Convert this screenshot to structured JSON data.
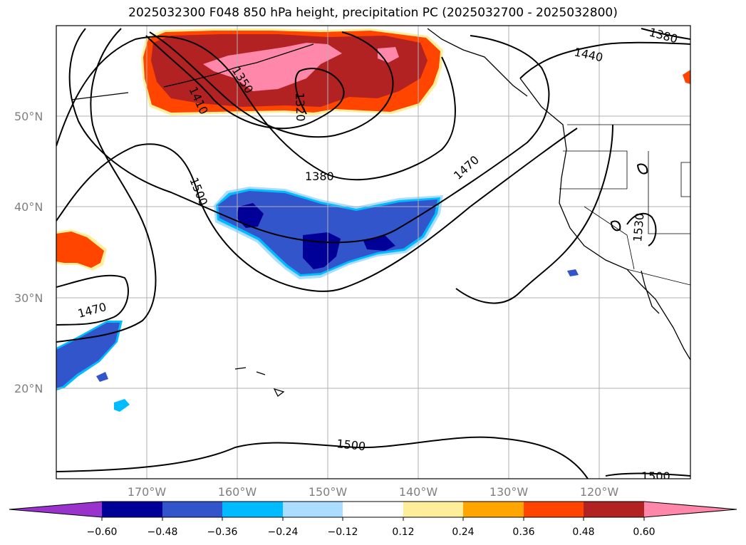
{
  "title": "2025032300 F048 850 hPa height, precipitation PC (2025032700 - 2025032800)",
  "lat_labels": [
    "50°N",
    "40°N",
    "30°N",
    "20°N"
  ],
  "lon_labels": [
    "170°W",
    "160°W",
    "150°W",
    "140°W",
    "130°W",
    "120°W"
  ],
  "contour_labels": [
    "1380",
    "1440",
    "1410",
    "1350",
    "1320",
    "1380",
    "1470",
    "1500",
    "1530",
    "1470",
    "1500",
    "1500"
  ],
  "colorbar": {
    "colors": [
      "#9933cc",
      "#000099",
      "#3355cc",
      "#00bbff",
      "#aaddff",
      "#ffffff",
      "#ffee99",
      "#ffa500",
      "#ff4500",
      "#b22222",
      "#ff88aa"
    ],
    "tick_labels": [
      "−0.60",
      "−0.48",
      "−0.36",
      "−0.24",
      "−0.12",
      "0.12",
      "0.24",
      "0.36",
      "0.48",
      "0.60"
    ]
  }
}
